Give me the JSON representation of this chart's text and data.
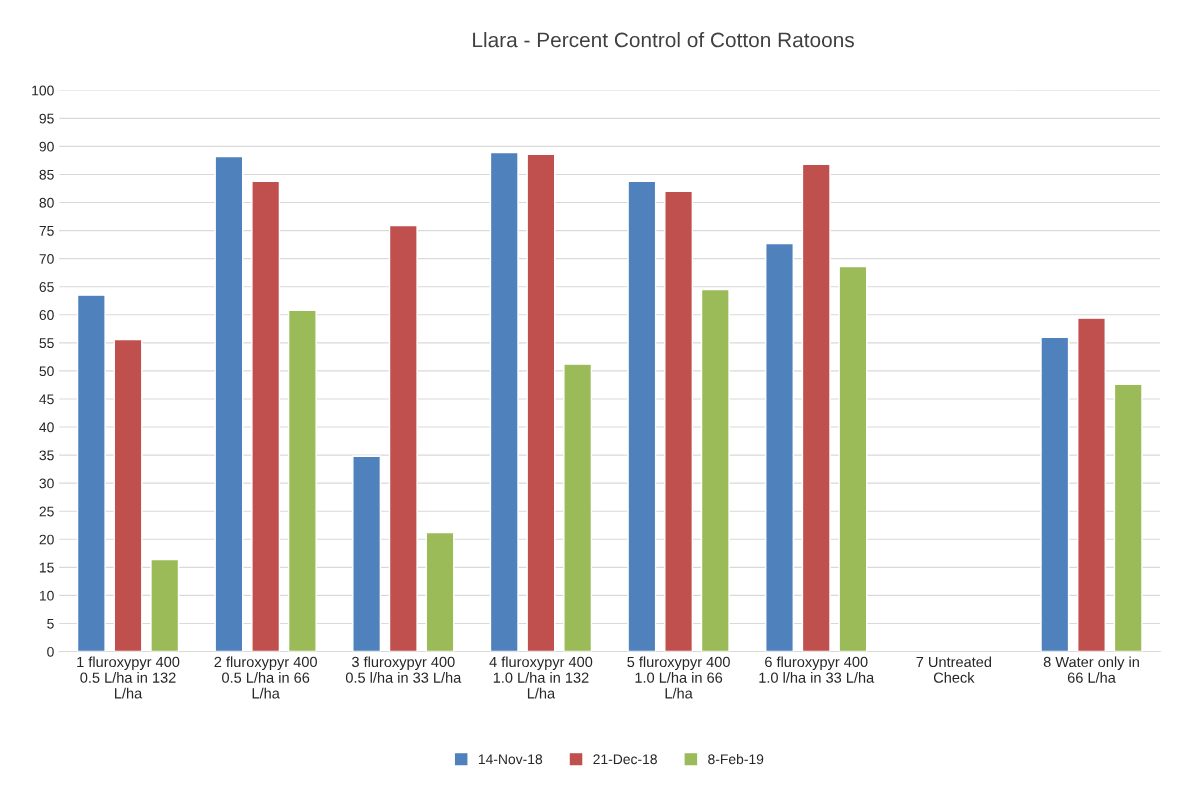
{
  "chart_data": {
    "type": "bar",
    "title": "Llara - Percent Control of Cotton Ratoons",
    "categories": [
      "1 fluroxypyr 400\n0.5 L/ha in 132\nL/ha",
      "2 fluroxypyr 400\n0.5 L/ha in 66\nL/ha",
      "3 fluroxypyr 400\n0.5 l/ha in 33 L/ha",
      "4 fluroxypyr 400\n1.0 L/ha in 132\nL/ha",
      "5 fluroxypyr 400\n1.0 L/ha in 66\nL/ha",
      "6 fluroxypyr 400\n1.0 l/ha in 33 L/ha",
      "7 Untreated\nCheck",
      "8 Water only in\n66 L/ha"
    ],
    "series": [
      {
        "name": "14-Nov-18",
        "color": "#4f81bd",
        "values": [
          63.5,
          88.2,
          34.8,
          88.9,
          83.8,
          72.7,
          null,
          56
        ]
      },
      {
        "name": "21-Dec-18",
        "color": "#c0504d",
        "values": [
          55.6,
          83.8,
          75.9,
          88.6,
          82,
          86.8,
          null,
          59.4
        ]
      },
      {
        "name": "8-Feb-19",
        "color": "#9bbb59",
        "values": [
          16.4,
          60.8,
          21.2,
          51.2,
          64.5,
          68.6,
          null,
          47.6
        ]
      }
    ],
    "ylim": [
      0,
      100
    ],
    "yticks": [
      0,
      5,
      10,
      15,
      20,
      25,
      30,
      35,
      40,
      45,
      50,
      55,
      60,
      65,
      70,
      75,
      80,
      85,
      90,
      95,
      100
    ],
    "grid": "y",
    "legend": "bottom"
  }
}
